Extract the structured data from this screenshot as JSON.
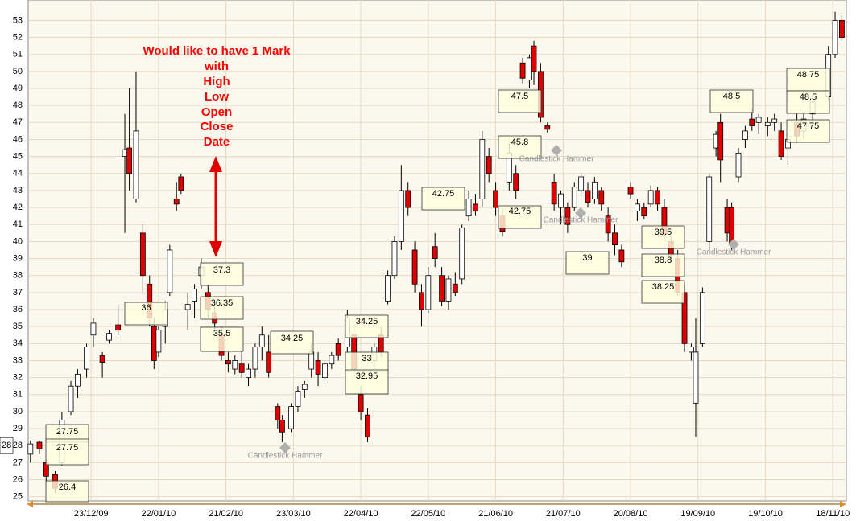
{
  "chart_data": {
    "type": "candlestick",
    "xlim": [
      "25/11/09",
      "24/11/10"
    ],
    "xticks": [
      "23/12/09",
      "22/01/10",
      "21/02/10",
      "23/03/10",
      "22/04/10",
      "22/05/10",
      "21/06/10",
      "21/07/10",
      "20/08/10",
      "19/09/10",
      "19/10/10",
      "18/11/10"
    ],
    "ylim": [
      24.75,
      54.2
    ],
    "yticks": [
      25,
      26,
      27,
      28,
      29,
      30,
      31,
      32,
      33,
      34,
      35,
      36,
      37,
      38,
      39,
      40,
      41,
      42,
      43,
      44,
      45,
      46,
      47,
      48,
      49,
      50,
      51,
      52,
      53
    ],
    "grid": true,
    "up_color": "#ffffff",
    "down_color": "#e00000",
    "candles": [
      {
        "date": "26/11/09",
        "open": 27.5,
        "high": 28.3,
        "low": 27,
        "close": 28.1
      },
      {
        "date": "30/11/09",
        "open": 28.2,
        "high": 28.3,
        "low": 27.5,
        "close": 27.8
      },
      {
        "date": "03/12/09",
        "open": 27,
        "high": 27.2,
        "low": 25.8,
        "close": 26.2
      },
      {
        "date": "07/12/09",
        "open": 26.3,
        "high": 26.5,
        "low": 25.2,
        "close": 25.5
      },
      {
        "date": "10/12/09",
        "open": 27,
        "high": 30,
        "low": 26.8,
        "close": 29.5
      },
      {
        "date": "14/12/09",
        "open": 30,
        "high": 31.8,
        "low": 29.8,
        "close": 31.5
      },
      {
        "date": "17/12/09",
        "open": 31.5,
        "high": 32.5,
        "low": 30.8,
        "close": 32.2
      },
      {
        "date": "21/12/09",
        "open": 32.5,
        "high": 34,
        "low": 32,
        "close": 33.8
      },
      {
        "date": "24/12/09",
        "open": 34.5,
        "high": 35.5,
        "low": 33.8,
        "close": 35.2
      },
      {
        "date": "28/12/09",
        "open": 33.3,
        "high": 33.5,
        "low": 32,
        "close": 32.9
      },
      {
        "date": "31/12/09",
        "open": 34.2,
        "high": 34.8,
        "low": 34,
        "close": 34.6
      },
      {
        "date": "04/01/10",
        "open": 35.1,
        "high": 36.3,
        "low": 34.5,
        "close": 34.8
      },
      {
        "date": "07/01/10",
        "open": 45,
        "high": 47.5,
        "low": 40.5,
        "close": 45.4
      },
      {
        "date": "09/01/10",
        "open": 45.5,
        "high": 49,
        "low": 43,
        "close": 44
      },
      {
        "date": "12/01/10",
        "open": 42.5,
        "high": 50,
        "low": 42.3,
        "close": 46.5
      },
      {
        "date": "15/01/10",
        "open": 40.5,
        "high": 41,
        "low": 37,
        "close": 38
      },
      {
        "date": "18/01/10",
        "open": 37.5,
        "high": 38,
        "low": 35,
        "close": 35.5
      },
      {
        "date": "20/01/10",
        "open": 35,
        "high": 35.5,
        "low": 32.5,
        "close": 33
      },
      {
        "date": "22/01/10",
        "open": 33.5,
        "high": 35,
        "low": 33.2,
        "close": 34.8
      },
      {
        "date": "25/01/10",
        "open": 35,
        "high": 36.5,
        "low": 34,
        "close": 36
      },
      {
        "date": "27/01/10",
        "open": 37,
        "high": 39.8,
        "low": 36.8,
        "close": 39.5
      },
      {
        "date": "30/01/10",
        "open": 42.5,
        "high": 43.5,
        "low": 41.8,
        "close": 42.2
      },
      {
        "date": "01/02/10",
        "open": 43.8,
        "high": 44,
        "low": 42.8,
        "close": 43
      },
      {
        "date": "04/02/10",
        "open": 36,
        "high": 37,
        "low": 34.8,
        "close": 36.3
      },
      {
        "date": "07/02/10",
        "open": 36.5,
        "high": 37.5,
        "low": 35.5,
        "close": 37.2
      },
      {
        "date": "10/02/10",
        "open": 38,
        "high": 39,
        "low": 37.2,
        "close": 38.5
      },
      {
        "date": "13/02/10",
        "open": 37,
        "high": 37.5,
        "low": 35.5,
        "close": 36
      },
      {
        "date": "16/02/10",
        "open": 35.8,
        "high": 36.5,
        "low": 34.8,
        "close": 35.2
      },
      {
        "date": "19/02/10",
        "open": 34.5,
        "high": 35,
        "low": 33,
        "close": 33.3
      },
      {
        "date": "22/02/10",
        "open": 33,
        "high": 33.5,
        "low": 32.3,
        "close": 32.8
      },
      {
        "date": "25/02/10",
        "open": 32.5,
        "high": 33.3,
        "low": 32.2,
        "close": 33
      },
      {
        "date": "28/02/10",
        "open": 32.8,
        "high": 33.8,
        "low": 32,
        "close": 32.3
      },
      {
        "date": "03/03/10",
        "open": 32,
        "high": 32.8,
        "low": 31.5,
        "close": 32.5
      },
      {
        "date": "06/03/10",
        "open": 32.5,
        "high": 34,
        "low": 32,
        "close": 33.8
      },
      {
        "date": "09/03/10",
        "open": 33.8,
        "high": 35,
        "low": 33,
        "close": 34.5
      },
      {
        "date": "12/03/10",
        "open": 33.5,
        "high": 34.5,
        "low": 32,
        "close": 32.3
      },
      {
        "date": "16/03/10",
        "open": 30.3,
        "high": 30.5,
        "low": 29,
        "close": 29.5
      },
      {
        "date": "18/03/10",
        "open": 29.5,
        "high": 29.8,
        "low": 28.2,
        "close": 28.8
      },
      {
        "date": "22/03/10",
        "open": 29,
        "high": 30.5,
        "low": 28.8,
        "close": 30.3
      },
      {
        "date": "25/03/10",
        "open": 30.3,
        "high": 31.5,
        "low": 30,
        "close": 31.2
      },
      {
        "date": "28/03/10",
        "open": 31.3,
        "high": 31.8,
        "low": 30.8,
        "close": 31.6
      },
      {
        "date": "31/03/10",
        "open": 32.5,
        "high": 34,
        "low": 32,
        "close": 33.5
      },
      {
        "date": "03/04/10",
        "open": 33,
        "high": 33.5,
        "low": 31.5,
        "close": 32.2
      },
      {
        "date": "06/04/10",
        "open": 32,
        "high": 33,
        "low": 31.8,
        "close": 32.8
      },
      {
        "date": "09/04/10",
        "open": 32.8,
        "high": 33.5,
        "low": 32.5,
        "close": 33.3
      },
      {
        "date": "12/04/10",
        "open": 34,
        "high": 34.3,
        "low": 33,
        "close": 33.3
      },
      {
        "date": "16/04/10",
        "open": 33.8,
        "high": 36,
        "low": 33.5,
        "close": 35.5
      },
      {
        "date": "19/04/10",
        "open": 34.5,
        "high": 35,
        "low": 32,
        "close": 32.5
      },
      {
        "date": "22/04/10",
        "open": 31,
        "high": 31.5,
        "low": 29.5,
        "close": 30
      },
      {
        "date": "25/04/10",
        "open": 29.8,
        "high": 30.2,
        "low": 28.2,
        "close": 28.5
      },
      {
        "date": "28/04/10",
        "open": 33,
        "high": 34,
        "low": 32.5,
        "close": 33.8
      },
      {
        "date": "01/05/10",
        "open": 34.5,
        "high": 35,
        "low": 33.2,
        "close": 33.5
      },
      {
        "date": "04/05/10",
        "open": 36.5,
        "high": 38.3,
        "low": 36.3,
        "close": 38
      },
      {
        "date": "07/05/10",
        "open": 38,
        "high": 40.3,
        "low": 37.8,
        "close": 40
      },
      {
        "date": "10/05/10",
        "open": 40,
        "high": 44.5,
        "low": 39.5,
        "close": 43
      },
      {
        "date": "13/05/10",
        "open": 43,
        "high": 43.5,
        "low": 41.5,
        "close": 42
      },
      {
        "date": "16/05/10",
        "open": 39.5,
        "high": 40,
        "low": 37,
        "close": 37.5
      },
      {
        "date": "19/05/10",
        "open": 37,
        "high": 37.5,
        "low": 35,
        "close": 36
      },
      {
        "date": "22/05/10",
        "open": 36,
        "high": 38.5,
        "low": 35.8,
        "close": 38
      },
      {
        "date": "25/05/10",
        "open": 39.7,
        "high": 40.5,
        "low": 38.5,
        "close": 39
      },
      {
        "date": "28/05/10",
        "open": 38,
        "high": 38.5,
        "low": 36.2,
        "close": 36.5
      },
      {
        "date": "31/05/10",
        "open": 36.5,
        "high": 38,
        "low": 36,
        "close": 37.8
      },
      {
        "date": "03/06/10",
        "open": 37.5,
        "high": 38.2,
        "low": 36.8,
        "close": 37
      },
      {
        "date": "06/06/10",
        "open": 37.8,
        "high": 41,
        "low": 37.5,
        "close": 40.8
      },
      {
        "date": "09/06/10",
        "open": 41.5,
        "high": 43,
        "low": 41.2,
        "close": 42.5
      },
      {
        "date": "12/06/10",
        "open": 42.2,
        "high": 42.8,
        "low": 41.5,
        "close": 41.8
      },
      {
        "date": "15/06/10",
        "open": 42.5,
        "high": 46.5,
        "low": 42,
        "close": 46
      },
      {
        "date": "18/06/10",
        "open": 45,
        "high": 45.5,
        "low": 43.5,
        "close": 44
      },
      {
        "date": "21/06/10",
        "open": 43,
        "high": 43.5,
        "low": 41.5,
        "close": 42
      },
      {
        "date": "24/06/10",
        "open": 41.5,
        "high": 42,
        "low": 40.3,
        "close": 40.6
      },
      {
        "date": "27/06/10",
        "open": 43.5,
        "high": 45.8,
        "low": 43,
        "close": 45.2
      },
      {
        "date": "30/06/10",
        "open": 44,
        "high": 44.5,
        "low": 42.5,
        "close": 43
      },
      {
        "date": "03/07/10",
        "open": 50.5,
        "high": 50.8,
        "low": 49.3,
        "close": 49.6
      },
      {
        "date": "06/07/10",
        "open": 49.5,
        "high": 51,
        "low": 49,
        "close": 50.8
      },
      {
        "date": "08/07/10",
        "open": 51.5,
        "high": 51.8,
        "low": 49.2,
        "close": 50
      },
      {
        "date": "11/07/10",
        "open": 50,
        "high": 50.5,
        "low": 47,
        "close": 47.3
      },
      {
        "date": "14/07/10",
        "open": 46.8,
        "high": 47,
        "low": 46.4,
        "close": 46.6
      },
      {
        "date": "17/07/10",
        "open": 43.5,
        "high": 44,
        "low": 41.8,
        "close": 42.2
      },
      {
        "date": "20/07/10",
        "open": 42,
        "high": 43,
        "low": 41,
        "close": 42.8
      },
      {
        "date": "23/07/10",
        "open": 42,
        "high": 42.3,
        "low": 40.5,
        "close": 41
      },
      {
        "date": "26/07/10",
        "open": 42,
        "high": 43.5,
        "low": 41.8,
        "close": 43.2
      },
      {
        "date": "29/07/10",
        "open": 43,
        "high": 44,
        "low": 42.8,
        "close": 43.8
      },
      {
        "date": "01/08/10",
        "open": 43,
        "high": 43.5,
        "low": 42,
        "close": 42.3
      },
      {
        "date": "04/08/10",
        "open": 42.5,
        "high": 43.8,
        "low": 42.2,
        "close": 43.5
      },
      {
        "date": "07/08/10",
        "open": 43,
        "high": 43.2,
        "low": 41.8,
        "close": 42.2
      },
      {
        "date": "10/08/10",
        "open": 41.5,
        "high": 42,
        "low": 40,
        "close": 40.5
      },
      {
        "date": "13/08/10",
        "open": 40.5,
        "high": 41,
        "low": 39.2,
        "close": 39.8
      },
      {
        "date": "16/08/10",
        "open": 39.5,
        "high": 39.8,
        "low": 38.5,
        "close": 38.8
      },
      {
        "date": "20/08/10",
        "open": 43.2,
        "high": 43.5,
        "low": 42.5,
        "close": 42.8
      },
      {
        "date": "23/08/10",
        "open": 41.8,
        "high": 42.5,
        "low": 41.2,
        "close": 42.2
      },
      {
        "date": "26/08/10",
        "open": 42,
        "high": 42.3,
        "low": 41.3,
        "close": 41.5
      },
      {
        "date": "29/08/10",
        "open": 42.2,
        "high": 43.3,
        "low": 42,
        "close": 43
      },
      {
        "date": "01/09/10",
        "open": 43,
        "high": 43.2,
        "low": 41.8,
        "close": 42.2
      },
      {
        "date": "04/09/10",
        "open": 42,
        "high": 42.5,
        "low": 40,
        "close": 40.4
      },
      {
        "date": "07/09/10",
        "open": 40,
        "high": 40.3,
        "low": 38.8,
        "close": 39.2
      },
      {
        "date": "10/09/10",
        "open": 39,
        "high": 39.5,
        "low": 36.8,
        "close": 37
      },
      {
        "date": "13/09/10",
        "open": 37,
        "high": 37.5,
        "low": 33.5,
        "close": 34
      },
      {
        "date": "16/09/10",
        "open": 33.5,
        "high": 34,
        "low": 33,
        "close": 33.8
      },
      {
        "date": "18/09/10",
        "open": 30.5,
        "high": 35.5,
        "low": 28.5,
        "close": 33.5
      },
      {
        "date": "21/09/10",
        "open": 34,
        "high": 37.3,
        "low": 33.8,
        "close": 37
      },
      {
        "date": "24/09/10",
        "open": 40,
        "high": 44,
        "low": 39.5,
        "close": 43.8
      },
      {
        "date": "27/09/10",
        "open": 45.5,
        "high": 46.5,
        "low": 45,
        "close": 46.3
      },
      {
        "date": "29/09/10",
        "open": 47,
        "high": 47.5,
        "low": 43.5,
        "close": 44.8
      },
      {
        "date": "02/10/10",
        "open": 42,
        "high": 42.5,
        "low": 40,
        "close": 40.5
      },
      {
        "date": "04/10/10",
        "open": 42,
        "high": 42.3,
        "low": 39.5,
        "close": 39.8
      },
      {
        "date": "07/10/10",
        "open": 43.8,
        "high": 45.5,
        "low": 43.5,
        "close": 45.2
      },
      {
        "date": "10/10/10",
        "open": 46,
        "high": 46.8,
        "low": 45.5,
        "close": 46.5
      },
      {
        "date": "13/10/10",
        "open": 47.2,
        "high": 47.8,
        "low": 46.5,
        "close": 46.8
      },
      {
        "date": "16/10/10",
        "open": 47,
        "high": 47.5,
        "low": 46.3,
        "close": 47.3
      },
      {
        "date": "20/10/10",
        "open": 46.8,
        "high": 47.3,
        "low": 46.2,
        "close": 47
      },
      {
        "date": "23/10/10",
        "open": 47,
        "high": 47.5,
        "low": 46.5,
        "close": 47.2
      },
      {
        "date": "26/10/10",
        "open": 46.5,
        "high": 47,
        "low": 44.8,
        "close": 45
      },
      {
        "date": "29/10/10",
        "open": 45.5,
        "high": 46.3,
        "low": 44.5,
        "close": 46
      },
      {
        "date": "02/11/10",
        "open": 47,
        "high": 47.5,
        "low": 45.8,
        "close": 46.2
      },
      {
        "date": "05/11/10",
        "open": 46.5,
        "high": 47.5,
        "low": 46,
        "close": 47.2
      },
      {
        "date": "09/11/10",
        "open": 47.5,
        "high": 48.5,
        "low": 47,
        "close": 48.2
      },
      {
        "date": "16/11/10",
        "open": 48.5,
        "high": 51.5,
        "low": 48.2,
        "close": 51
      },
      {
        "date": "19/11/10",
        "open": 51,
        "high": 53.5,
        "low": 50.8,
        "close": 53
      },
      {
        "date": "22/11/10",
        "open": 53,
        "high": 53.3,
        "low": 51.8,
        "close": 52
      }
    ],
    "value_boxes": [
      27.75,
      27.75,
      26.4,
      36,
      37.3,
      36.35,
      35.5,
      34.25,
      34.25,
      33,
      32.95,
      42.75,
      47.5,
      45.8,
      42.75,
      39,
      39.5,
      38.8,
      38.25,
      48.5,
      48.75,
      48.5,
      47.75
    ],
    "patterns": [
      "Candlestick Hammer",
      "Candlestick Hammer",
      "Candlestick Hammer",
      "Candlestick Hammer"
    ],
    "annotation": [
      "Would like to have 1 Mark",
      "with",
      "High",
      "Low",
      "Open",
      "Close",
      "Date"
    ],
    "cursor_label": 28
  }
}
